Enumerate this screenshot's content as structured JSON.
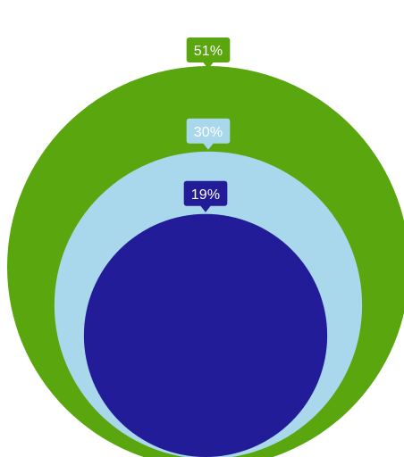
{
  "chart_data": {
    "type": "nested-circles",
    "title": "",
    "labels": [
      "51%",
      "30%",
      "19%"
    ],
    "values": [
      51,
      30,
      19
    ],
    "colors": [
      "#5aa60f",
      "#a9d8ec",
      "#221c98"
    ],
    "label_text_colors": [
      "#ffffff",
      "#ffffff",
      "#ffffff"
    ],
    "legend": "none"
  }
}
